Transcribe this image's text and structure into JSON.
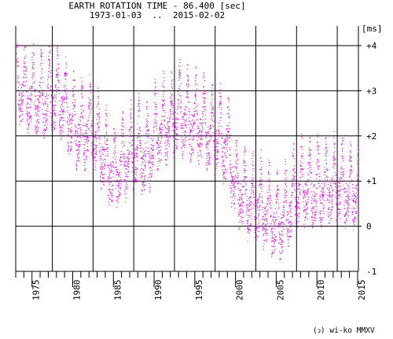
{
  "chart_data": {
    "type": "scatter",
    "title": "EARTH ROTATION TIME - 86.400 [sec]",
    "subtitle": "1973-01-03  ..  2015-02-02",
    "ylabel": "[ms]",
    "xlim": [
      1973.0,
      2015.1
    ],
    "ylim": [
      -1.0,
      4.0
    ],
    "grid": true,
    "x_tick_labels": [
      "1975",
      "1980",
      "1985",
      "1990",
      "1995",
      "2000",
      "2005",
      "2010",
      "2015"
    ],
    "y_tick_labels": [
      "+4",
      "+3",
      "+2",
      "+1",
      "0",
      "-1"
    ],
    "point_color": "#ee00ee",
    "series_trend": {
      "x": [
        1973.0,
        1974.0,
        1975.0,
        1976.0,
        1977.0,
        1978.0,
        1979.0,
        1980.0,
        1981.0,
        1982.0,
        1983.0,
        1984.0,
        1985.0,
        1986.0,
        1987.0,
        1988.0,
        1989.0,
        1990.0,
        1991.0,
        1992.0,
        1993.0,
        1994.0,
        1995.0,
        1996.0,
        1997.0,
        1998.0,
        1999.0,
        2000.0,
        2001.0,
        2002.0,
        2003.0,
        2004.0,
        2005.0,
        2006.0,
        2007.0,
        2008.0,
        2009.0,
        2010.0,
        2011.0,
        2012.0,
        2013.0,
        2014.0,
        2015.0
      ],
      "y": [
        3.2,
        3.0,
        2.9,
        2.8,
        2.9,
        2.9,
        2.6,
        2.3,
        2.1,
        2.2,
        1.9,
        1.5,
        1.2,
        1.4,
        1.6,
        1.7,
        1.5,
        2.0,
        2.2,
        2.3,
        2.5,
        2.4,
        2.3,
        2.2,
        2.0,
        2.0,
        1.7,
        0.9,
        0.7,
        0.5,
        0.5,
        0.3,
        0.1,
        0.2,
        0.6,
        0.9,
        0.9,
        0.8,
        0.9,
        0.9,
        0.9,
        0.8,
        0.9
      ]
    }
  },
  "footer": {
    "copyright": "(ↄ) wi-ko MMXV"
  }
}
